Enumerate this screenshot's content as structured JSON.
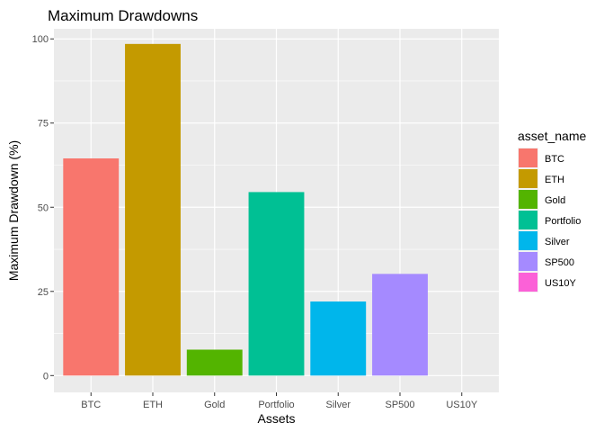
{
  "chart_data": {
    "type": "bar",
    "title": "Maximum Drawdowns",
    "xlabel": "Assets",
    "ylabel": "Maximum Drawdown (%)",
    "categories": [
      "BTC",
      "ETH",
      "Gold",
      "Portfolio",
      "Silver",
      "SP500",
      "US10Y"
    ],
    "values": [
      64.5,
      98.5,
      7.7,
      54.5,
      22.0,
      30.2,
      0
    ],
    "colors": [
      "#F8766D",
      "#C49A00",
      "#53B400",
      "#00C094",
      "#00B6EB",
      "#A58AFF",
      "#FB61D7"
    ],
    "ylim": [
      -5,
      103
    ],
    "yticks": [
      0,
      25,
      50,
      75,
      100
    ],
    "grid": true,
    "legend": {
      "title": "asset_name",
      "position": "right",
      "entries": [
        "BTC",
        "ETH",
        "Gold",
        "Portfolio",
        "Silver",
        "SP500",
        "US10Y"
      ]
    }
  }
}
